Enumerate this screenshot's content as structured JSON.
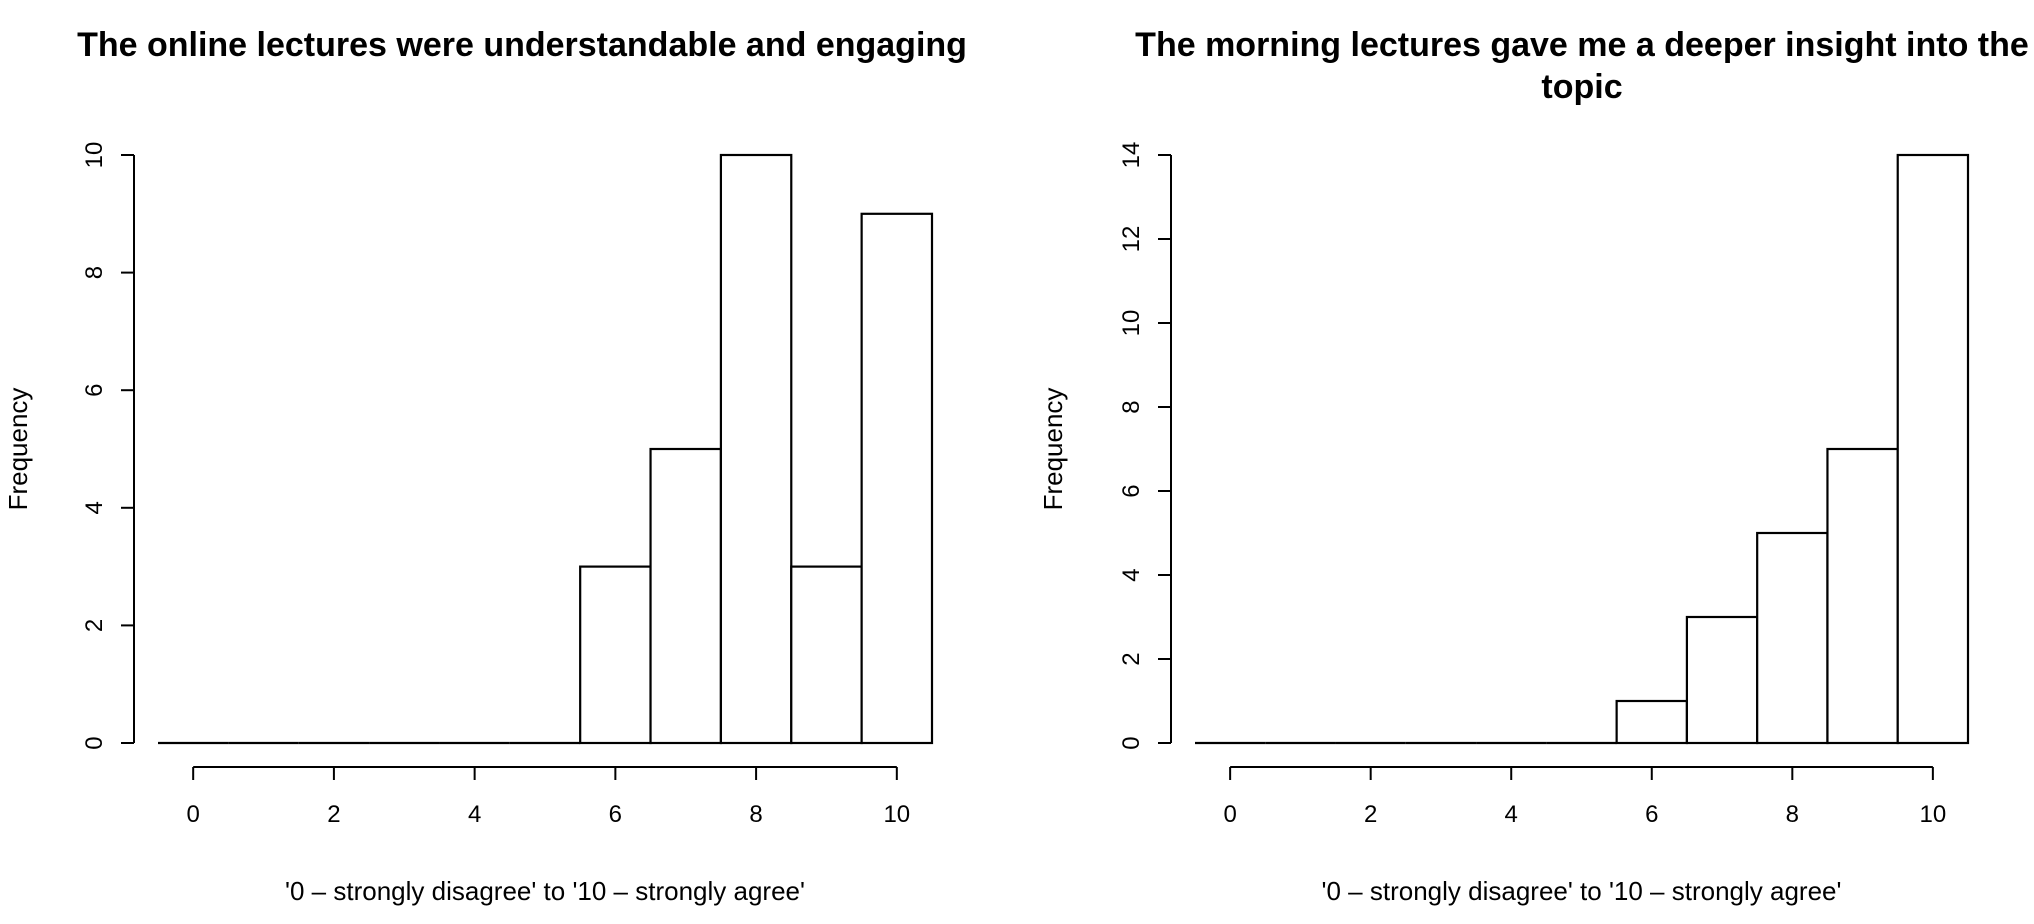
{
  "chart_data": [
    {
      "type": "bar",
      "title": "The online lectures were understandable and engaging",
      "xlabel": "'0 – strongly disagree' to '10 – strongly agree'",
      "ylabel": "Frequency",
      "categories": [
        0,
        1,
        2,
        3,
        4,
        5,
        6,
        7,
        8,
        9,
        10
      ],
      "values": [
        0,
        0,
        0,
        0,
        0,
        0,
        3,
        5,
        10,
        3,
        9
      ],
      "xticks": [
        0,
        2,
        4,
        6,
        8,
        10
      ],
      "yticks": [
        0,
        2,
        4,
        6,
        8,
        10
      ],
      "xlim": [
        -0.5,
        10.5
      ],
      "ylim": [
        0,
        10
      ],
      "grid": false
    },
    {
      "type": "bar",
      "title": "The morning lectures gave me a deeper insight into the topic",
      "xlabel": "'0 – strongly disagree' to '10 – strongly agree'",
      "ylabel": "Frequency",
      "categories": [
        0,
        1,
        2,
        3,
        4,
        5,
        6,
        7,
        8,
        9,
        10
      ],
      "values": [
        0,
        0,
        0,
        0,
        0,
        0,
        1,
        3,
        5,
        7,
        14
      ],
      "xticks": [
        0,
        2,
        4,
        6,
        8,
        10
      ],
      "yticks": [
        0,
        2,
        4,
        6,
        8,
        10,
        12,
        14
      ],
      "xlim": [
        -0.5,
        10.5
      ],
      "ylim": [
        0,
        14
      ],
      "grid": false
    }
  ]
}
